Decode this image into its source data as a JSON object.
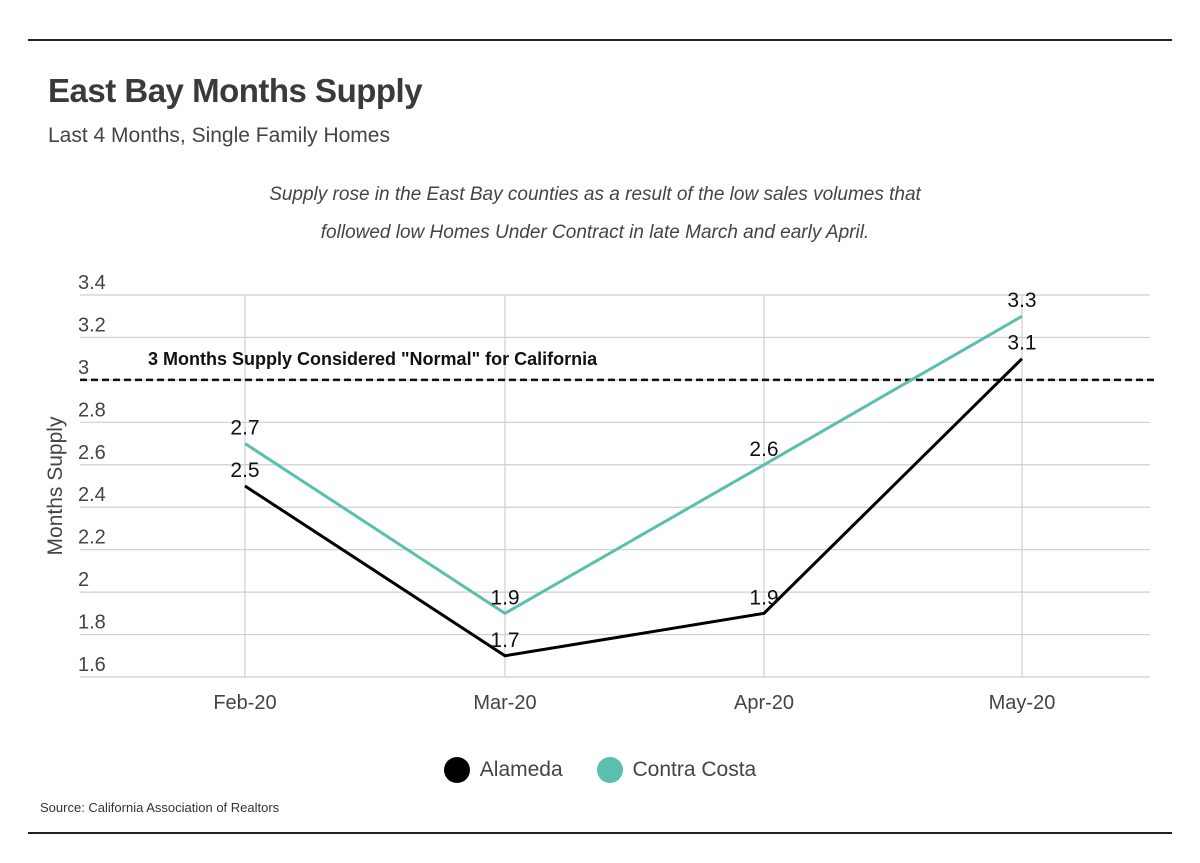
{
  "title": "East Bay Months Supply",
  "subtitle": "Last 4 Months, Single Family Homes",
  "note_line1": "Supply rose in the East Bay counties as a result of the low sales volumes that",
  "note_line2": "followed low Homes Under Contract in late March and early April.",
  "source": "Source:  California Association of Realtors",
  "chart_data": {
    "type": "line",
    "categories": [
      "Feb-20",
      "Mar-20",
      "Apr-20",
      "May-20"
    ],
    "series": [
      {
        "name": "Alameda",
        "values": [
          2.5,
          1.7,
          1.9,
          3.1
        ],
        "color": "#000000"
      },
      {
        "name": "Contra Costa",
        "values": [
          2.7,
          1.9,
          2.6,
          3.3
        ],
        "color": "#5bbfae"
      }
    ],
    "ylabel": "Months Supply",
    "xlabel": "",
    "ylim": [
      1.6,
      3.4
    ],
    "yticks": [
      1.6,
      1.8,
      2,
      2.2,
      2.4,
      2.6,
      2.8,
      3,
      3.2,
      3.4
    ],
    "reference_line": {
      "value": 3,
      "label": "3 Months Supply Considered \"Normal\" for California",
      "style": "dashed"
    },
    "grid": true,
    "legend_position": "bottom"
  }
}
